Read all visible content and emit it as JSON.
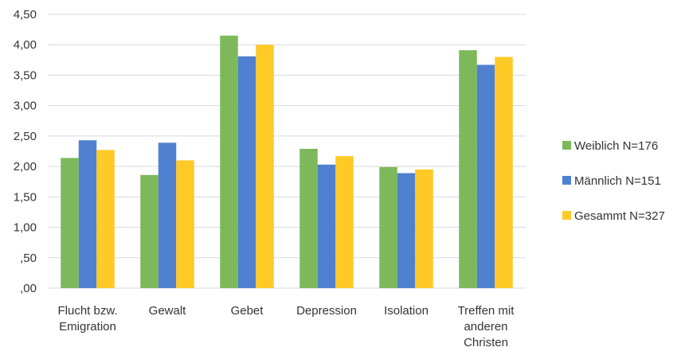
{
  "chart_data": {
    "type": "bar",
    "categories": [
      [
        "Flucht bzw.",
        "Emigration"
      ],
      [
        "Gewalt"
      ],
      [
        "Gebet"
      ],
      [
        "Depression"
      ],
      [
        "Isolation"
      ],
      [
        "Treffen mit",
        "anderen",
        "Christen"
      ]
    ],
    "series": [
      {
        "name": "Weiblich N=176",
        "color": "#7db95b",
        "values": [
          2.14,
          1.86,
          4.15,
          2.29,
          1.99,
          3.91
        ]
      },
      {
        "name": "Männlich N=151",
        "color": "#4f81d0",
        "values": [
          2.43,
          2.39,
          3.81,
          2.03,
          1.89,
          3.67
        ]
      },
      {
        "name": "Gesammt N=327",
        "color": "#ffc926",
        "values": [
          2.27,
          2.1,
          4.0,
          2.17,
          1.95,
          3.8
        ]
      }
    ],
    "yticks": [
      ",00",
      ",50",
      "1,00",
      "1,50",
      "2,00",
      "2,50",
      "3,00",
      "3,50",
      "4,00",
      "4,50"
    ],
    "ylim": [
      0,
      4.5
    ],
    "grid": true,
    "legend": "right",
    "title": "",
    "xlabel": "",
    "ylabel": ""
  }
}
